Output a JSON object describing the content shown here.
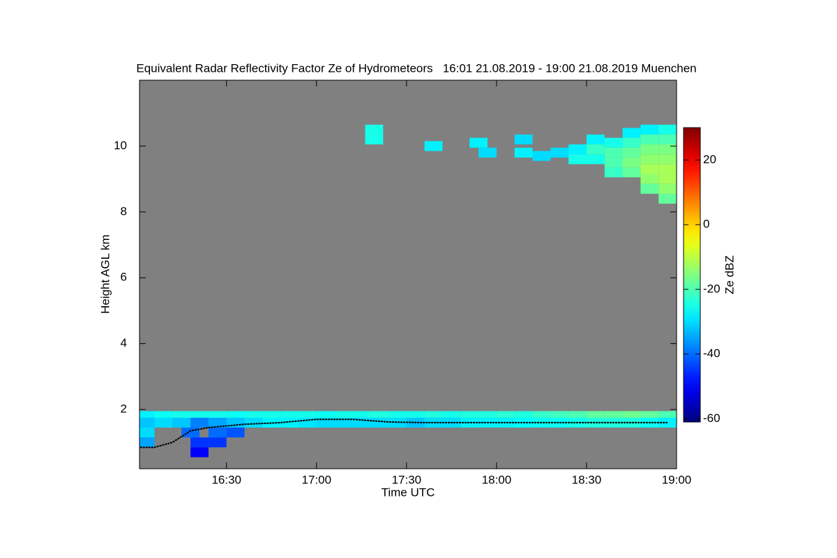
{
  "chart_data": {
    "type": "heatmap",
    "title": "Equivalent Radar Reflectivity Factor Ze of Hydrometeors   16:01 21.08.2019 - 19:00 21.08.2019 Muenchen",
    "x_label": "Time UTC",
    "y_label": "Height AGL km",
    "colorbar_label": "Ze dBZ",
    "xlim": [
      16.0167,
      19.0
    ],
    "ylim": [
      0.2,
      12
    ],
    "clim": [
      -61,
      30
    ],
    "xticks": [
      {
        "value": 16.5,
        "label": "16:30"
      },
      {
        "value": 17.0,
        "label": "17:00"
      },
      {
        "value": 17.5,
        "label": "17:30"
      },
      {
        "value": 18.0,
        "label": "18:00"
      },
      {
        "value": 18.5,
        "label": "18:30"
      },
      {
        "value": 19.0,
        "label": "19:00"
      }
    ],
    "yticks": [
      2,
      4,
      6,
      8,
      10
    ],
    "cticks": [
      -60,
      -40,
      -20,
      0,
      20
    ],
    "background": "#808080",
    "colormap": "jet",
    "cells": {
      "x": [
        16.05,
        16.15,
        16.25,
        16.35,
        16.45,
        16.55,
        16.65,
        16.75,
        16.85,
        16.95,
        17.05,
        17.15,
        17.25,
        17.35,
        17.45,
        17.55,
        17.65,
        17.75,
        17.85,
        17.95,
        18.05,
        18.15,
        18.25,
        18.35,
        18.45,
        18.55,
        18.65,
        18.75,
        18.85,
        18.95,
        16.05,
        16.15,
        16.25,
        16.35,
        16.45,
        16.55,
        16.65,
        16.75,
        16.85,
        16.95,
        17.05,
        17.15,
        17.25,
        17.35,
        17.45,
        17.55,
        17.65,
        17.75,
        17.85,
        17.95,
        18.05,
        18.15,
        18.25,
        18.35,
        18.45,
        18.55,
        18.65,
        18.75,
        18.85,
        18.95,
        16.05,
        16.05,
        16.3,
        16.35,
        16.35,
        16.45,
        16.45,
        16.55,
        17.32,
        17.32,
        17.65,
        17.9,
        17.95,
        18.15,
        18.15,
        18.25,
        18.35,
        18.45,
        18.45,
        18.55,
        18.55,
        18.55,
        18.65,
        18.65,
        18.65,
        18.65,
        18.75,
        18.75,
        18.75,
        18.75,
        18.75,
        18.85,
        18.85,
        18.85,
        18.85,
        18.85,
        18.85,
        18.85,
        18.95,
        18.95,
        18.95,
        18.95,
        18.95,
        18.95,
        18.95,
        18.95
      ],
      "y": [
        1.8,
        1.8,
        1.8,
        1.8,
        1.8,
        1.8,
        1.8,
        1.8,
        1.8,
        1.8,
        1.8,
        1.8,
        1.8,
        1.8,
        1.8,
        1.8,
        1.8,
        1.8,
        1.8,
        1.8,
        1.8,
        1.8,
        1.8,
        1.8,
        1.8,
        1.8,
        1.8,
        1.8,
        1.8,
        1.8,
        1.6,
        1.6,
        1.6,
        1.6,
        1.6,
        1.6,
        1.6,
        1.6,
        1.6,
        1.6,
        1.6,
        1.6,
        1.6,
        1.6,
        1.6,
        1.6,
        1.6,
        1.6,
        1.6,
        1.6,
        1.6,
        1.6,
        1.6,
        1.6,
        1.6,
        1.6,
        1.6,
        1.6,
        1.6,
        1.6,
        1.3,
        1.0,
        1.3,
        1.0,
        0.7,
        1.3,
        1.0,
        1.3,
        10.5,
        10.2,
        10.0,
        10.1,
        9.8,
        10.2,
        9.8,
        9.7,
        9.8,
        9.9,
        9.6,
        10.2,
        9.9,
        9.6,
        10.1,
        9.8,
        9.5,
        9.2,
        10.4,
        10.1,
        9.8,
        9.5,
        9.2,
        10.5,
        10.2,
        9.9,
        9.6,
        9.3,
        9.0,
        8.7,
        10.5,
        10.2,
        9.9,
        9.6,
        9.3,
        9.0,
        8.7,
        8.4
      ],
      "values": [
        -28,
        -26,
        -25,
        -25,
        -25,
        -26,
        -25,
        -25,
        -25,
        -25,
        -26,
        -25,
        -25,
        -24,
        -25,
        -25,
        -24,
        -25,
        -24,
        -24,
        -23,
        -24,
        -22,
        -21,
        -20,
        -18,
        -18,
        -17,
        -18,
        -20,
        -32,
        -30,
        -32,
        -38,
        -35,
        -32,
        -30,
        -28,
        -28,
        -29,
        -30,
        -30,
        -30,
        -30,
        -30,
        -32,
        -30,
        -30,
        -28,
        -28,
        -28,
        -27,
        -26,
        -26,
        -25,
        -24,
        -24,
        -24,
        -26,
        -28,
        -30,
        -35,
        -40,
        -45,
        -50,
        -40,
        -45,
        -42,
        -25,
        -25,
        -28,
        -28,
        -30,
        -30,
        -28,
        -30,
        -30,
        -28,
        -25,
        -28,
        -22,
        -25,
        -25,
        -20,
        -20,
        -22,
        -28,
        -22,
        -18,
        -16,
        -18,
        -28,
        -20,
        -16,
        -14,
        -12,
        -14,
        -18,
        -25,
        -20,
        -16,
        -14,
        -12,
        -12,
        -14,
        -18
      ]
    },
    "line": {
      "color": "#000000",
      "x": [
        16.02,
        16.1,
        16.2,
        16.3,
        16.4,
        16.6,
        16.8,
        17.0,
        17.2,
        17.4,
        17.6,
        17.8,
        18.0,
        18.2,
        18.4,
        18.6,
        18.8,
        18.95
      ],
      "y": [
        0.85,
        0.85,
        1.0,
        1.35,
        1.45,
        1.55,
        1.6,
        1.7,
        1.7,
        1.62,
        1.6,
        1.6,
        1.6,
        1.6,
        1.6,
        1.6,
        1.6,
        1.6
      ]
    }
  }
}
